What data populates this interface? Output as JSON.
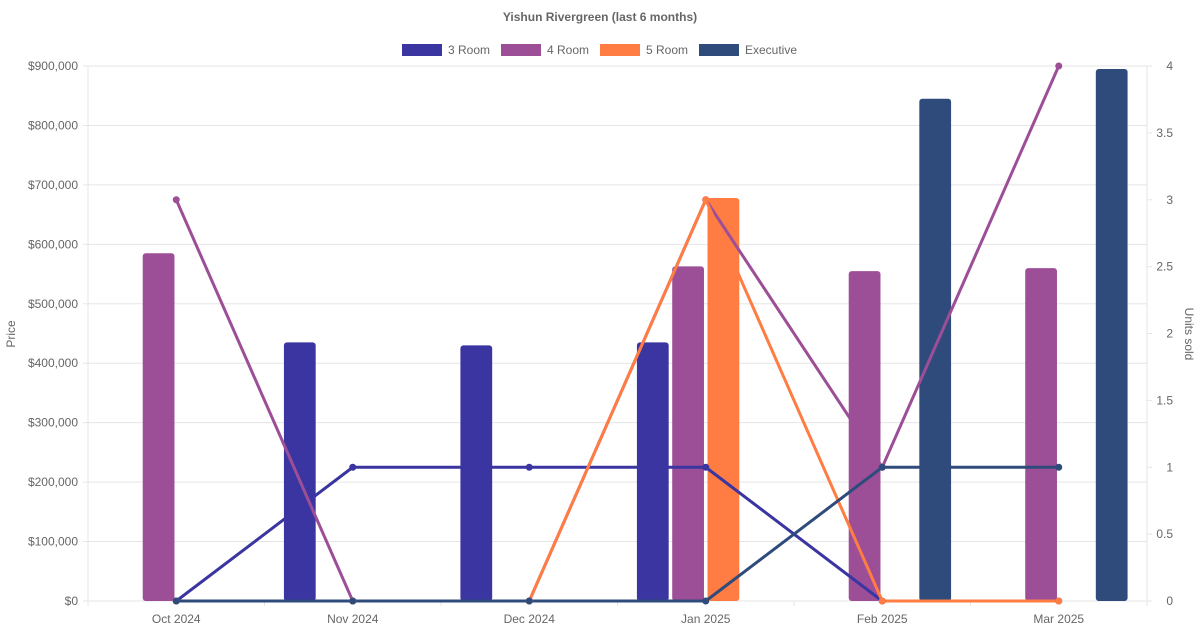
{
  "chart_data": {
    "type": "bar+line",
    "title": "Yishun Rivergreen (last 6 months)",
    "categories": [
      "Oct 2024",
      "Nov 2024",
      "Dec 2024",
      "Jan 2025",
      "Feb 2025",
      "Mar 2025"
    ],
    "y_left": {
      "label": "Price",
      "range": [
        0,
        900000
      ],
      "ticks": [
        0,
        100000,
        200000,
        300000,
        400000,
        500000,
        600000,
        700000,
        800000,
        900000
      ],
      "tick_labels": [
        "$0",
        "$100,000",
        "$200,000",
        "$300,000",
        "$400,000",
        "$500,000",
        "$600,000",
        "$700,000",
        "$800,000",
        "$900,000"
      ]
    },
    "y_right": {
      "label": "Units sold",
      "range": [
        0,
        4
      ],
      "ticks": [
        0,
        0.5,
        1,
        1.5,
        2,
        2.5,
        3,
        3.5,
        4
      ],
      "tick_labels": [
        "0",
        "0.5",
        "1",
        "1.5",
        "2",
        "2.5",
        "3",
        "3.5",
        "4"
      ]
    },
    "legend": [
      "3 Room",
      "4 Room",
      "5 Room",
      "Executive"
    ],
    "legend_position": "top",
    "series": [
      {
        "name": "3 Room",
        "color": "#3a35a0",
        "price": [
          0,
          435000,
          430000,
          435000,
          0,
          0
        ],
        "units": [
          0,
          1,
          1,
          1,
          0,
          0
        ]
      },
      {
        "name": "4 Room",
        "color": "#9c4f97",
        "price": [
          585000,
          0,
          0,
          563000,
          555000,
          560000
        ],
        "units": [
          3,
          0,
          0,
          3,
          1,
          4
        ]
      },
      {
        "name": "5 Room",
        "color": "#ff7c43",
        "price": [
          0,
          0,
          0,
          678000,
          0,
          0
        ],
        "units": [
          0,
          0,
          0,
          3,
          0,
          0
        ]
      },
      {
        "name": "Executive",
        "color": "#2f4b7c",
        "price": [
          0,
          0,
          0,
          0,
          845000,
          895000
        ],
        "units": [
          0,
          0,
          0,
          0,
          1,
          1
        ]
      }
    ]
  }
}
